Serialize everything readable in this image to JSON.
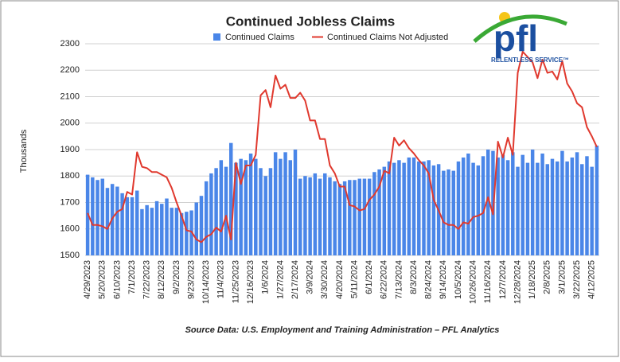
{
  "chart_data": {
    "type": "bar_line",
    "title": "Continued Jobless Claims",
    "y_label": "Thousands",
    "source": "Source Data: U.S. Employment and Training Administration – PFL Analytics",
    "categories": [
      "4/29/2023",
      null,
      null,
      "5/20/2023",
      null,
      null,
      "6/10/2023",
      null,
      null,
      "7/1/2023",
      null,
      null,
      "7/22/2023",
      null,
      null,
      "8/12/2023",
      null,
      null,
      "9/2/2023",
      null,
      null,
      "9/23/2023",
      null,
      null,
      "10/14/2023",
      null,
      null,
      "11/4/2023",
      null,
      null,
      "11/25/2023",
      null,
      null,
      "12/16/2023",
      null,
      null,
      "1/6/2024",
      null,
      null,
      "1/27/2024",
      null,
      null,
      "2/17/2024",
      null,
      null,
      "3/9/2024",
      null,
      null,
      "3/30/2024",
      null,
      null,
      "4/20/2024",
      null,
      null,
      "5/11/2024",
      null,
      null,
      "6/1/2024",
      null,
      null,
      "6/22/2024",
      null,
      null,
      "7/13/2024",
      null,
      null,
      "8/3/2024",
      null,
      null,
      "8/24/2024",
      null,
      null,
      "9/14/2024",
      null,
      null,
      "10/5/2024",
      null,
      null,
      "10/26/2024",
      null,
      null,
      "11/16/2024",
      null,
      null,
      "12/7/2024",
      null,
      null,
      "12/28/2024",
      null,
      null,
      "1/18/2025",
      null,
      null,
      "2/8/2025",
      null,
      null,
      "3/1/2025",
      null,
      null,
      "3/22/2025",
      null,
      null,
      "4/12/2025",
      null
    ],
    "series": [
      {
        "name": "Continued Claims",
        "kind": "bar",
        "color": "#4a86e8",
        "values": [
          1805,
          1795,
          1785,
          1790,
          1755,
          1770,
          1760,
          1735,
          1720,
          1720,
          1745,
          1675,
          1690,
          1680,
          1705,
          1695,
          1715,
          1680,
          1680,
          1660,
          1665,
          1670,
          1700,
          1725,
          1780,
          1810,
          1830,
          1860,
          1835,
          1925,
          1850,
          1865,
          1860,
          1885,
          1865,
          1830,
          1800,
          1830,
          1890,
          1865,
          1890,
          1860,
          1900,
          1790,
          1800,
          1795,
          1810,
          1790,
          1810,
          1795,
          1780,
          1770,
          1780,
          1785,
          1785,
          1790,
          1790,
          1790,
          1815,
          1825,
          1835,
          1855,
          1850,
          1860,
          1850,
          1870,
          1870,
          1855,
          1855,
          1860,
          1840,
          1845,
          1820,
          1825,
          1820,
          1855,
          1870,
          1885,
          1850,
          1840,
          1875,
          1900,
          1895,
          1870,
          1880,
          1860,
          1890,
          1835,
          1880,
          1850,
          1900,
          1850,
          1885,
          1845,
          1865,
          1855,
          1895,
          1855,
          1870,
          1890,
          1845,
          1875,
          1835,
          1915
        ]
      },
      {
        "name": "Continued Claims Not Adjusted",
        "kind": "line",
        "color": "#e0392e",
        "values": [
          1660,
          1615,
          1615,
          1610,
          1600,
          1640,
          1665,
          1675,
          1740,
          1730,
          1890,
          1835,
          1830,
          1815,
          1815,
          1805,
          1795,
          1755,
          1700,
          1650,
          1595,
          1590,
          1560,
          1550,
          1570,
          1580,
          1605,
          1590,
          1650,
          1560,
          1850,
          1770,
          1840,
          1840,
          1880,
          2105,
          2125,
          2060,
          2180,
          2130,
          2145,
          2095,
          2095,
          2115,
          2085,
          2010,
          2010,
          1940,
          1940,
          1840,
          1810,
          1760,
          1760,
          1690,
          1685,
          1670,
          1675,
          1710,
          1730,
          1760,
          1820,
          1810,
          1945,
          1915,
          1935,
          1905,
          1885,
          1860,
          1840,
          1810,
          1710,
          1670,
          1625,
          1615,
          1615,
          1600,
          1625,
          1620,
          1645,
          1650,
          1660,
          1720,
          1655,
          1930,
          1870,
          1945,
          1880,
          2190,
          2270,
          2250,
          2230,
          2170,
          2240,
          2190,
          2195,
          2165,
          2235,
          2150,
          2120,
          2075,
          2060,
          1985,
          1950,
          1910
        ]
      }
    ],
    "ylim": [
      1500,
      2300
    ],
    "yticks": [
      1500,
      1600,
      1700,
      1800,
      1900,
      2000,
      2100,
      2200,
      2300
    ],
    "grid": true
  },
  "logo": {
    "text": "pfl",
    "tagline": "RELENTLESS SERVICE™"
  }
}
